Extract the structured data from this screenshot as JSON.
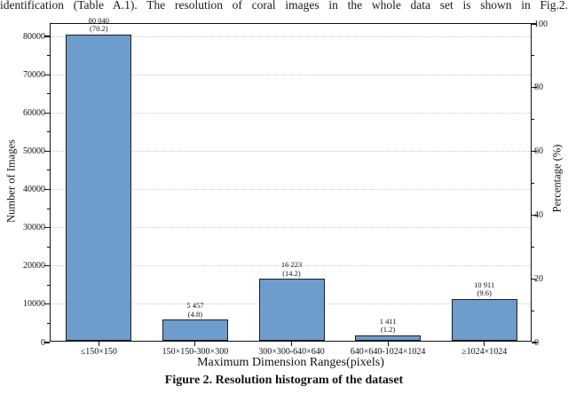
{
  "document": {
    "paragraph": "identification (Table A.1). The resolution of coral images in the whole data set is shown in Fig.2.",
    "caption": "Figure 2. Resolution histogram of the dataset"
  },
  "chart_data": {
    "type": "bar",
    "title": "",
    "categories": [
      "≤150×150",
      "150×150-300×300",
      "300×300-640×640",
      "640×640-1024×1024",
      "≥1024×1024"
    ],
    "values": [
      80040,
      5457,
      16223,
      1411,
      10911
    ],
    "percentages": [
      70.2,
      4.8,
      14.2,
      1.2,
      9.6
    ],
    "bar_count_labels": [
      "80 040",
      "5 457",
      "16 223",
      "1 411",
      "10 911"
    ],
    "bar_pct_labels": [
      "(70.2)",
      "(4.8)",
      "(14.2)",
      "(1.2)",
      "(9.6)"
    ],
    "xlabel": "Maximum Dimension Ranges(pixels)",
    "ylabel_left": "Number of Images",
    "ylabel_right": "Percentage (%)",
    "yticks_left": [
      0,
      10000,
      20000,
      30000,
      40000,
      50000,
      60000,
      70000,
      80000
    ],
    "yticks_right": [
      0,
      20,
      40,
      60,
      80,
      100
    ],
    "ylim_left": [
      0,
      83250
    ],
    "ylim_right": [
      0,
      100
    ],
    "minor_step_left": 5000,
    "minor_step_right": 10,
    "grid": "horizontal dotted at left-axis major ticks",
    "legend": "none",
    "bar_color": "#6d9ccd",
    "bar_edge_color": "#1f1f1f",
    "grid_color": "#c9c9c9",
    "axis_color": "#111111"
  }
}
